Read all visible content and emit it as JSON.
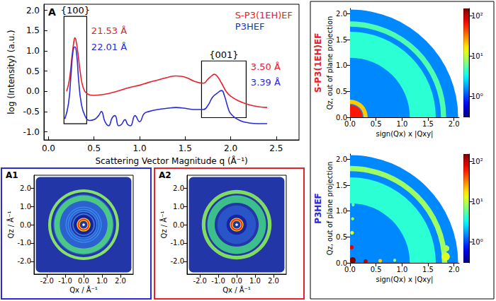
{
  "chart_data": [
    {
      "panel_label": "A",
      "type": "line",
      "x_label": "Scattering Vector Magnitude q (Å⁻¹)",
      "y_label": "log (Intensity) (a.u.)",
      "xlim": [
        -0.05,
        2.75
      ],
      "xticks": [
        {
          "value": 0,
          "label": "0.0"
        },
        0.5,
        {
          "value": 1,
          "label": "1.0"
        },
        1.5,
        {
          "value": 2,
          "label": "2.0"
        },
        2.5
      ],
      "ylim": [
        -1.2,
        2.15
      ],
      "yticks": [
        {
          "value": -1,
          "label": "-1.0"
        },
        -0.5,
        {
          "value": 0,
          "label": "0.0"
        },
        0.5,
        {
          "value": 1,
          "label": "1.0"
        },
        1.5,
        {
          "value": 2,
          "label": "2.0"
        }
      ],
      "grid": false,
      "legend": "top-right",
      "series": [
        {
          "name": "S-P3(1EH)EF",
          "color": "#e8202a",
          "x": [
            0.2,
            0.23,
            0.26,
            0.28,
            0.29,
            0.3,
            0.32,
            0.35,
            0.38,
            0.42,
            0.5,
            0.6,
            0.75,
            0.9,
            1.0,
            1.1,
            1.2,
            1.3,
            1.4,
            1.5,
            1.6,
            1.7,
            1.75,
            1.8,
            1.82,
            1.85,
            1.9,
            1.95,
            2.0,
            2.1,
            2.2,
            2.3,
            2.4
          ],
          "values": [
            0.0,
            0.3,
            0.9,
            1.25,
            1.32,
            1.28,
            1.0,
            0.45,
            0.1,
            -0.05,
            -0.1,
            -0.08,
            0.0,
            0.1,
            0.15,
            0.22,
            0.28,
            0.34,
            0.38,
            0.35,
            0.25,
            0.2,
            0.3,
            0.4,
            0.42,
            0.38,
            0.2,
            0.0,
            -0.12,
            -0.25,
            -0.33,
            -0.38,
            -0.4
          ]
        },
        {
          "name": "P3HEF",
          "color": "#2a2ad8",
          "x": [
            0.18,
            0.22,
            0.25,
            0.27,
            0.29,
            0.31,
            0.33,
            0.36,
            0.4,
            0.45,
            0.5,
            0.55,
            0.58,
            0.62,
            0.66,
            0.7,
            0.73,
            0.77,
            0.8,
            0.84,
            0.87,
            0.9,
            0.95,
            1.0,
            1.05,
            1.1,
            1.2,
            1.3,
            1.4,
            1.5,
            1.6,
            1.7,
            1.75,
            1.8,
            1.85,
            1.9,
            1.93,
            1.97,
            2.0,
            2.1,
            2.2,
            2.3,
            2.4
          ],
          "values": [
            -0.68,
            -0.3,
            0.5,
            1.0,
            1.1,
            0.9,
            0.3,
            -0.3,
            -0.6,
            -0.72,
            -0.7,
            -0.6,
            -0.5,
            -0.75,
            -0.85,
            -0.65,
            -0.6,
            -0.85,
            -0.82,
            -0.7,
            -0.82,
            -0.85,
            -0.6,
            -0.75,
            -0.55,
            -0.5,
            -0.45,
            -0.42,
            -0.4,
            -0.42,
            -0.45,
            -0.45,
            -0.35,
            -0.15,
            -0.05,
            0.02,
            -0.1,
            -0.4,
            -0.55,
            -0.72,
            -0.78,
            -0.8,
            -0.8
          ]
        }
      ],
      "boxes": [
        {
          "label": "{100}",
          "x": [
            0.17,
            0.42
          ],
          "y": [
            -0.8,
            1.85
          ]
        },
        {
          "label": "{001}",
          "x": [
            1.68,
            2.17
          ],
          "y": [
            -0.65,
            0.75
          ]
        }
      ],
      "annotations": [
        {
          "text": "21.53 Å",
          "x": 0.47,
          "y": 1.5,
          "color": "#e8202a"
        },
        {
          "text": "22.01 Å",
          "x": 0.47,
          "y": 1.1,
          "color": "#2a2ad8"
        },
        {
          "text": "3.50 Å",
          "x": 2.22,
          "y": 0.6,
          "color": "#e8202a"
        },
        {
          "text": "3.39 Å",
          "x": 2.22,
          "y": 0.22,
          "color": "#2a2ad8"
        }
      ]
    },
    {
      "panel_label": "A1",
      "type": "rings",
      "color": "#2a2ad8",
      "x_label": "Qx / Å⁻¹",
      "y_label": "Qz / Å⁻¹",
      "xlim": [
        -2.7,
        2.7
      ],
      "ylim": [
        -2.7,
        2.7
      ],
      "xticks": [
        {
          "value": -2,
          "label": "-2.0"
        },
        {
          "value": -1,
          "label": "-1.0"
        },
        {
          "value": 0,
          "label": "0.0"
        },
        {
          "value": 1,
          "label": "1.0"
        },
        {
          "value": 2,
          "label": "2.0"
        }
      ],
      "yticks": [
        {
          "value": -2,
          "label": "-2.0"
        },
        {
          "value": -1,
          "label": "-1.0"
        },
        {
          "value": 0,
          "label": "0.0"
        },
        {
          "value": 1,
          "label": "1.0"
        },
        {
          "value": 2,
          "label": "2.0"
        }
      ],
      "extent": 2.6,
      "background": "#2236a8",
      "rings": [
        {
          "q": 1.2,
          "width": 0.9,
          "color": "#2c62d0"
        },
        {
          "q": 1.45,
          "width": 0.3,
          "color": "#4cc886"
        },
        {
          "q": 1.85,
          "width": 0.16,
          "color": "#86e06a"
        },
        {
          "q": 0.96,
          "width": 0.05,
          "color": "#3a8ef0"
        },
        {
          "q": 0.84,
          "width": 0.05,
          "color": "#3a8ef0"
        },
        {
          "q": 0.72,
          "width": 0.05,
          "color": "#3a8ef0"
        },
        {
          "q": 0.58,
          "width": 0.05,
          "color": "#3a8ef0"
        },
        {
          "q": 0.45,
          "width": 0.12,
          "color": "#14209a"
        },
        {
          "q": 0.29,
          "width": 0.16,
          "color": "#f0e020"
        },
        {
          "q": 0.29,
          "width": 0.07,
          "color": "#ff2a10"
        },
        {
          "q": 0.0,
          "width": 0.14,
          "color": "#ffffff"
        }
      ]
    },
    {
      "panel_label": "A2",
      "type": "rings",
      "color": "#e8202a",
      "x_label": "Qx / Å⁻¹",
      "y_label": "Qz / Å⁻¹",
      "xlim": [
        -2.7,
        2.7
      ],
      "ylim": [
        -2.7,
        2.7
      ],
      "xticks": [
        {
          "value": -2,
          "label": "-2.0"
        },
        {
          "value": -1,
          "label": "-1.0"
        },
        {
          "value": 0,
          "label": "0.0"
        },
        {
          "value": 1,
          "label": "1.0"
        },
        {
          "value": 2,
          "label": "2.0"
        }
      ],
      "yticks": [
        {
          "value": -2,
          "label": "-2.0"
        },
        {
          "value": -1,
          "label": "-1.0"
        },
        {
          "value": 0,
          "label": "0.0"
        },
        {
          "value": 1,
          "label": "1.0"
        },
        {
          "value": 2,
          "label": "2.0"
        }
      ],
      "extent": 2.6,
      "background": "#2236a8",
      "rings": [
        {
          "q": 0.8,
          "width": 0.5,
          "color": "#2a55c8"
        },
        {
          "q": 1.4,
          "width": 0.4,
          "color": "#3cbf8a"
        },
        {
          "q": 1.8,
          "width": 0.2,
          "color": "#80dc60"
        },
        {
          "q": 0.45,
          "width": 0.2,
          "color": "#1626a0"
        },
        {
          "q": 0.29,
          "width": 0.16,
          "color": "#f0e020"
        },
        {
          "q": 0.29,
          "width": 0.08,
          "color": "#ff2a10"
        },
        {
          "q": 0.0,
          "width": 0.14,
          "color": "#ffffff"
        }
      ]
    },
    {
      "type": "giwaxs",
      "title": "S-P3(1EH)EF",
      "color": "#e8202a",
      "x_label": "sign(Qx) x |Qxy|",
      "y_label": "Qz, out of plane projection",
      "xlim": [
        0,
        2.1
      ],
      "ylim": [
        0,
        2.1
      ],
      "xticks": [
        {
          "value": 0,
          "label": "0.0"
        },
        0.5,
        {
          "value": 1,
          "label": "1.0"
        },
        1.5,
        {
          "value": 2,
          "label": "2.0"
        }
      ],
      "yticks": [
        {
          "value": 0,
          "label": "0.0"
        },
        0.5,
        {
          "value": 1,
          "label": "1.0"
        },
        1.5,
        {
          "value": 2,
          "label": "2.0"
        }
      ],
      "coverage_q": 2.08,
      "background": 1.5,
      "arcs": [
        {
          "q": 1.4,
          "width": 0.5,
          "intensity": 4
        },
        {
          "q": 1.8,
          "width": 0.1,
          "intensity": 5
        },
        {
          "q": 0.3,
          "width": 0.08,
          "intensity": 20
        },
        {
          "q": 0.12,
          "width": 0.24,
          "intensity": 60
        }
      ],
      "spots": [],
      "colorbar": {
        "range": [
          0.3,
          150
        ],
        "log": true,
        "ticks": [
          {
            "value": 1,
            "label": "10⁰"
          },
          {
            "value": 10,
            "label": "10¹"
          },
          {
            "value": 100,
            "label": "10²"
          }
        ]
      }
    },
    {
      "type": "giwaxs",
      "title": "P3HEF",
      "color": "#2a2ad8",
      "x_label": "sign(Qx) x |Qxy|",
      "y_label": "Qz, out of plane projection",
      "xlim": [
        0,
        2.1
      ],
      "ylim": [
        0,
        2.1
      ],
      "xticks": [
        {
          "value": 0,
          "label": "0.0"
        },
        0.5,
        {
          "value": 1,
          "label": "1.0"
        },
        1.5,
        {
          "value": 2,
          "label": "2.0"
        }
      ],
      "yticks": [
        {
          "value": 0,
          "label": "0.0"
        },
        0.5,
        {
          "value": 1,
          "label": "1.0"
        },
        1.5,
        {
          "value": 2,
          "label": "2.0"
        }
      ],
      "coverage_q": 2.08,
      "background": 1.5,
      "arcs": [
        {
          "q": 1.4,
          "width": 0.5,
          "intensity": 4
        },
        {
          "q": 1.82,
          "width": 0.1,
          "intensity": 8
        }
      ],
      "spots": [
        {
          "qxy": 1.84,
          "qz": 0.12,
          "width": 0.16,
          "intensity": 12
        },
        {
          "qxy": 1.85,
          "qz": 0.28,
          "width": 0.12,
          "intensity": 9
        },
        {
          "qxy": 0.03,
          "qz": 0.3,
          "width": 0.08,
          "intensity": 80
        },
        {
          "qxy": 0.04,
          "qz": 0.58,
          "width": 0.07,
          "intensity": 12
        },
        {
          "qxy": 0.05,
          "qz": 0.85,
          "width": 0.06,
          "intensity": 8
        },
        {
          "qxy": 0.06,
          "qz": 1.12,
          "width": 0.06,
          "intensity": 6
        },
        {
          "qxy": 0.3,
          "qz": 0.03,
          "width": 0.08,
          "intensity": 100
        },
        {
          "qxy": 0.58,
          "qz": 0.04,
          "width": 0.07,
          "intensity": 20
        },
        {
          "qxy": 0.86,
          "qz": 0.05,
          "width": 0.06,
          "intensity": 8
        },
        {
          "qxy": 0.05,
          "qz": 0.05,
          "width": 0.12,
          "intensity": 150
        }
      ],
      "colorbar": {
        "range": [
          0.3,
          150
        ],
        "log": true,
        "ticks": [
          {
            "value": 1,
            "label": "10⁰"
          },
          {
            "value": 10,
            "label": "10¹"
          },
          {
            "value": 100,
            "label": "10²"
          }
        ]
      }
    }
  ]
}
